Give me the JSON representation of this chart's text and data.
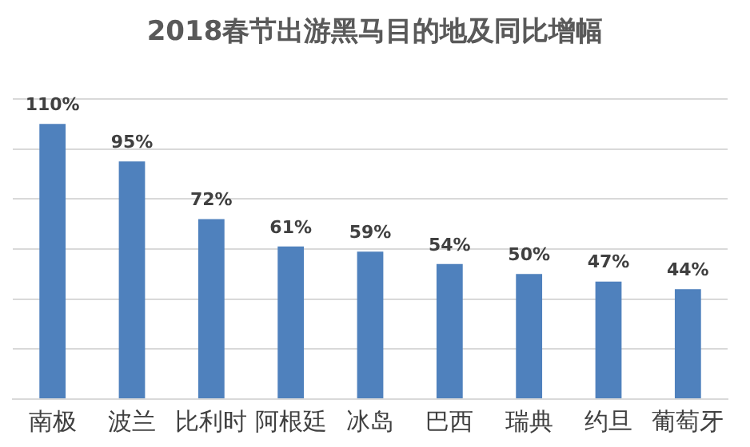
{
  "chart_data": {
    "type": "bar",
    "title": "2018春节出游黑马目的地及同比增幅",
    "categories": [
      "南极",
      "波兰",
      "比利时",
      "阿根廷",
      "冰岛",
      "巴西",
      "瑞典",
      "约旦",
      "葡萄牙"
    ],
    "values": [
      110,
      95,
      72,
      61,
      59,
      54,
      50,
      47,
      44
    ],
    "value_labels": [
      "110%",
      "95%",
      "72%",
      "61%",
      "59%",
      "54%",
      "50%",
      "47%",
      "44%"
    ],
    "color": "#4f81bd",
    "ylim": [
      0,
      120
    ],
    "yticks": [
      {
        "value": 0,
        "label": null
      },
      {
        "value": 20,
        "label": null
      },
      {
        "value": 40,
        "label": null
      },
      {
        "value": 60,
        "label": null
      },
      {
        "value": 80,
        "label": null
      },
      {
        "value": 100,
        "label": null
      },
      {
        "value": 120,
        "label": null
      }
    ],
    "tick_labels": "x",
    "grid": "y",
    "legend": false
  }
}
